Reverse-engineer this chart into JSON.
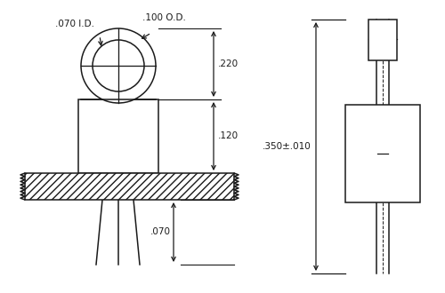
{
  "bg_color": "#ffffff",
  "line_color": "#1a1a1a",
  "annotations": {
    "id_label": ".070 I.D.",
    "od_label": ".100 O.D.",
    "dim_220": ".220",
    "dim_120": ".120",
    "dim_070": ".070",
    "dim_350": ".350±.010"
  },
  "fig_w": 5.0,
  "fig_h": 3.3,
  "dpi": 100
}
